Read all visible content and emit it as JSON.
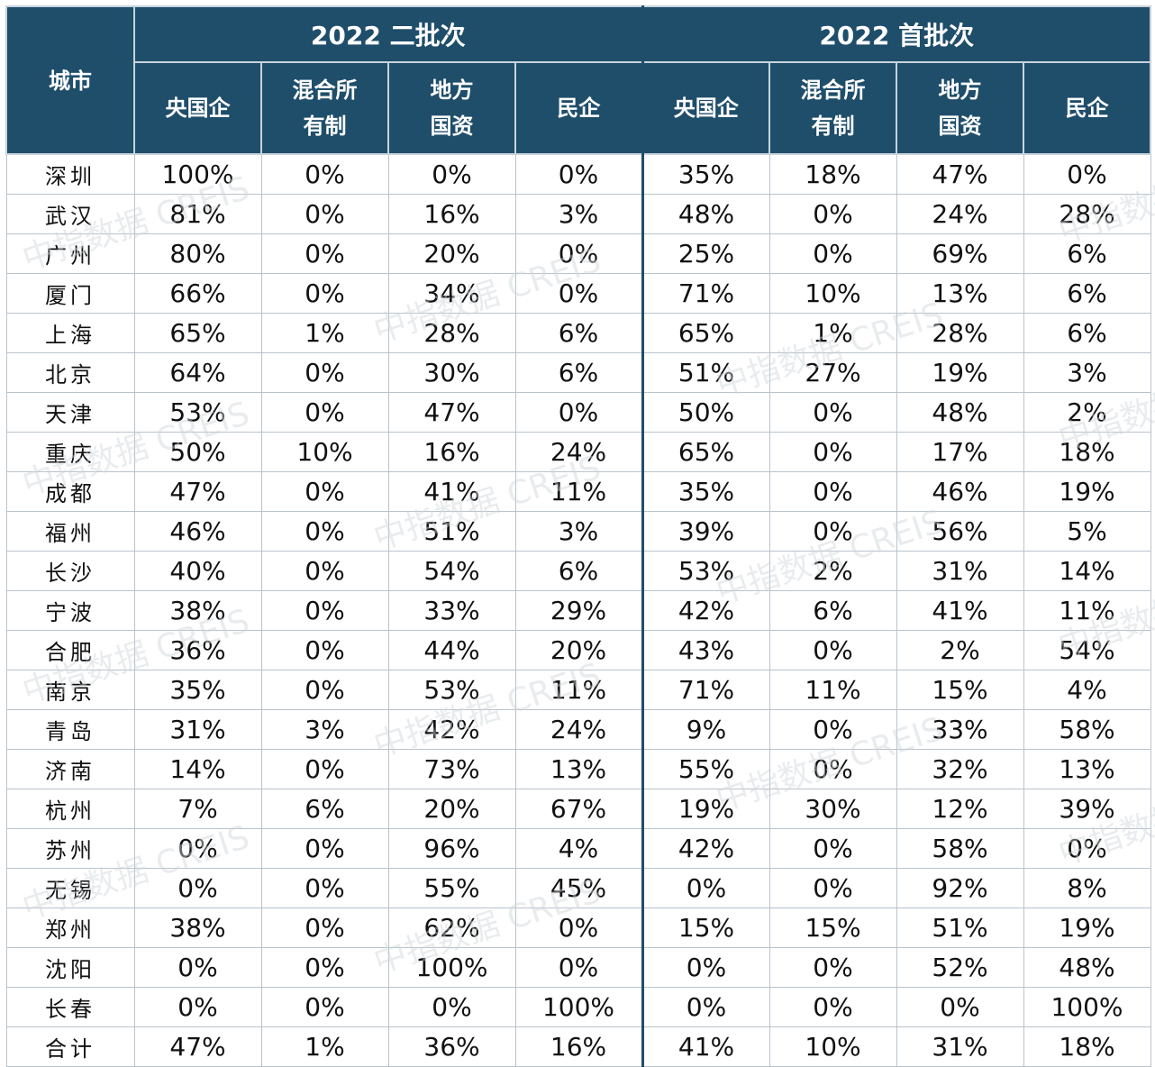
{
  "header": {
    "city_label": "城市",
    "groups": [
      "2022 二批次",
      "2022 首批次"
    ],
    "columns": [
      "央国企",
      "混合所\n有制",
      "地方\n国资",
      "民企"
    ]
  },
  "rows": [
    {
      "city": "深圳",
      "v": [
        "100%",
        "0%",
        "0%",
        "0%",
        "35%",
        "18%",
        "47%",
        "0%"
      ]
    },
    {
      "city": "武汉",
      "v": [
        "81%",
        "0%",
        "16%",
        "3%",
        "48%",
        "0%",
        "24%",
        "28%"
      ]
    },
    {
      "city": "广州",
      "v": [
        "80%",
        "0%",
        "20%",
        "0%",
        "25%",
        "0%",
        "69%",
        "6%"
      ]
    },
    {
      "city": "厦门",
      "v": [
        "66%",
        "0%",
        "34%",
        "0%",
        "71%",
        "10%",
        "13%",
        "6%"
      ]
    },
    {
      "city": "上海",
      "v": [
        "65%",
        "1%",
        "28%",
        "6%",
        "65%",
        "1%",
        "28%",
        "6%"
      ]
    },
    {
      "city": "北京",
      "v": [
        "64%",
        "0%",
        "30%",
        "6%",
        "51%",
        "27%",
        "19%",
        "3%"
      ]
    },
    {
      "city": "天津",
      "v": [
        "53%",
        "0%",
        "47%",
        "0%",
        "50%",
        "0%",
        "48%",
        "2%"
      ]
    },
    {
      "city": "重庆",
      "v": [
        "50%",
        "10%",
        "16%",
        "24%",
        "65%",
        "0%",
        "17%",
        "18%"
      ]
    },
    {
      "city": "成都",
      "v": [
        "47%",
        "0%",
        "41%",
        "11%",
        "35%",
        "0%",
        "46%",
        "19%"
      ]
    },
    {
      "city": "福州",
      "v": [
        "46%",
        "0%",
        "51%",
        "3%",
        "39%",
        "0%",
        "56%",
        "5%"
      ]
    },
    {
      "city": "长沙",
      "v": [
        "40%",
        "0%",
        "54%",
        "6%",
        "53%",
        "2%",
        "31%",
        "14%"
      ]
    },
    {
      "city": "宁波",
      "v": [
        "38%",
        "0%",
        "33%",
        "29%",
        "42%",
        "6%",
        "41%",
        "11%"
      ]
    },
    {
      "city": "合肥",
      "v": [
        "36%",
        "0%",
        "44%",
        "20%",
        "43%",
        "0%",
        "2%",
        "54%"
      ]
    },
    {
      "city": "南京",
      "v": [
        "35%",
        "0%",
        "53%",
        "11%",
        "71%",
        "11%",
        "15%",
        "4%"
      ]
    },
    {
      "city": "青岛",
      "v": [
        "31%",
        "3%",
        "42%",
        "24%",
        "9%",
        "0%",
        "33%",
        "58%"
      ]
    },
    {
      "city": "济南",
      "v": [
        "14%",
        "0%",
        "73%",
        "13%",
        "55%",
        "0%",
        "32%",
        "13%"
      ]
    },
    {
      "city": "杭州",
      "v": [
        "7%",
        "6%",
        "20%",
        "67%",
        "19%",
        "30%",
        "12%",
        "39%"
      ]
    },
    {
      "city": "苏州",
      "v": [
        "0%",
        "0%",
        "96%",
        "4%",
        "42%",
        "0%",
        "58%",
        "0%"
      ]
    },
    {
      "city": "无锡",
      "v": [
        "0%",
        "0%",
        "55%",
        "45%",
        "0%",
        "0%",
        "92%",
        "8%"
      ]
    },
    {
      "city": "郑州",
      "v": [
        "38%",
        "0%",
        "62%",
        "0%",
        "15%",
        "15%",
        "51%",
        "19%"
      ]
    },
    {
      "city": "沈阳",
      "v": [
        "0%",
        "0%",
        "100%",
        "0%",
        "0%",
        "0%",
        "52%",
        "48%"
      ]
    },
    {
      "city": "长春",
      "v": [
        "0%",
        "0%",
        "0%",
        "100%",
        "0%",
        "0%",
        "0%",
        "100%"
      ]
    },
    {
      "city": "合计",
      "v": [
        "47%",
        "1%",
        "36%",
        "16%",
        "41%",
        "10%",
        "31%",
        "18%"
      ]
    }
  ],
  "watermark": {
    "text": "中指数据 CREIS",
    "color": "#cfd5da"
  }
}
